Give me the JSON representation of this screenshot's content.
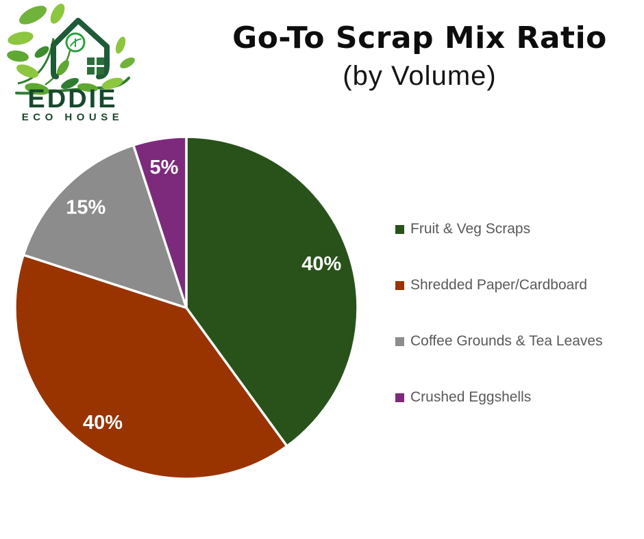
{
  "logo": {
    "name": "EDDIE",
    "tagline": "ECO HOUSE",
    "brand_color": "#17492d",
    "house_color": "#1f5b36",
    "leaf_light": "#8dc63f",
    "leaf_mid": "#5fa832",
    "leaf_dark": "#2e7d32"
  },
  "header": {
    "title": "Go-To Scrap Mix Ratio",
    "subtitle": "(by Volume)"
  },
  "chart_data": {
    "type": "pie",
    "title": "Go-To Scrap Mix Ratio (by Volume)",
    "labels": [
      "Fruit & Veg Scraps",
      "Shredded Paper/Cardboard",
      "Coffee Grounds & Tea Leaves",
      "Crushed Eggshells"
    ],
    "values": [
      40,
      40,
      15,
      5
    ],
    "data_labels": [
      "40%",
      "40%",
      "15%",
      "5%"
    ],
    "colors": [
      "#28521a",
      "#993300",
      "#8c8c8c",
      "#7d2a7d"
    ],
    "start_angle_deg": 0,
    "direction": "clockwise",
    "slice_border_color": "#ffffff",
    "data_label_color": "#ffffff",
    "legend_position": "right",
    "legend_text_color": "#595959",
    "background": "#ffffff"
  }
}
